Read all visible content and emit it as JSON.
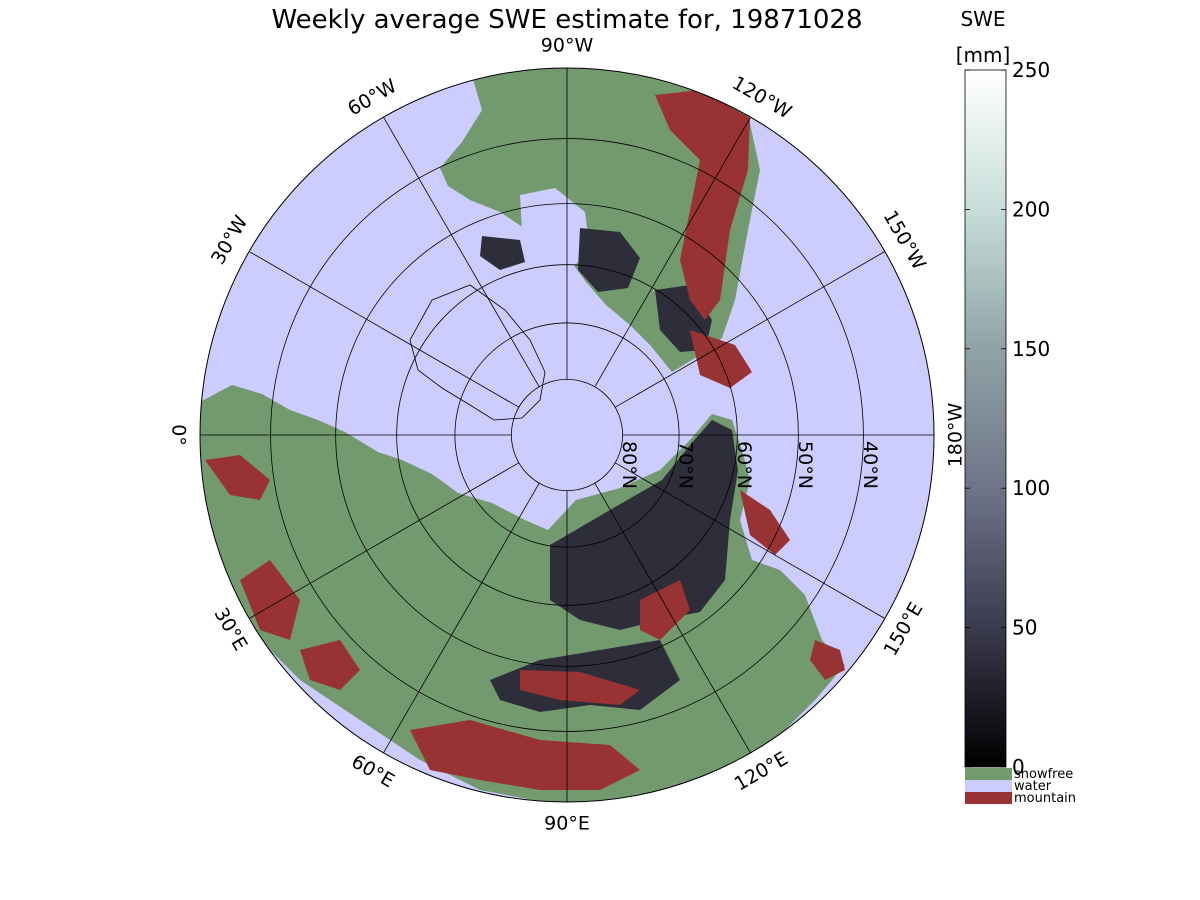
{
  "title": "Weekly average SWE estimate for, 19871028",
  "colorbar": {
    "title": "SWE",
    "units": "[mm]",
    "min": 0,
    "max": 250,
    "ticks": [
      0,
      50,
      100,
      150,
      200,
      250
    ],
    "tick_labels": [
      "0",
      "50",
      "100",
      "150",
      "200",
      "250"
    ],
    "gradient_colors": [
      "#000000",
      "#3b3b4f",
      "#6f7488",
      "#8fa3a6",
      "#c7ddd9",
      "#ffffff"
    ]
  },
  "legend": [
    {
      "label": "snowfree",
      "color": "#739a6f"
    },
    {
      "label": "water",
      "color": "#ccccff"
    },
    {
      "label": "mountain",
      "color": "#993333"
    }
  ],
  "map": {
    "projection": "north polar stereographic",
    "ocean_color": "#ccccff",
    "land_color": "#739a6f",
    "snow_color": "#2e2e3b",
    "mountain_color": "#993333",
    "longitude_labels": [
      {
        "text": "90°W",
        "lon": -90
      },
      {
        "text": "120°W",
        "lon": -120
      },
      {
        "text": "150°W",
        "lon": -150
      },
      {
        "text": "180°W",
        "lon": 180
      },
      {
        "text": "150°E",
        "lon": 150
      },
      {
        "text": "120°E",
        "lon": 120
      },
      {
        "text": "90°E",
        "lon": 90
      },
      {
        "text": "60°E",
        "lon": 60
      },
      {
        "text": "30°E",
        "lon": 30
      },
      {
        "text": "0°",
        "lon": 0
      },
      {
        "text": "30°W",
        "lon": -30
      },
      {
        "text": "60°W",
        "lon": -60
      }
    ],
    "latitude_labels": [
      {
        "text": "80°N",
        "lat": 80
      },
      {
        "text": "70°N",
        "lat": 70
      },
      {
        "text": "60°N",
        "lat": 60
      },
      {
        "text": "50°N",
        "lat": 50
      },
      {
        "text": "40°N",
        "lat": 40
      }
    ]
  }
}
